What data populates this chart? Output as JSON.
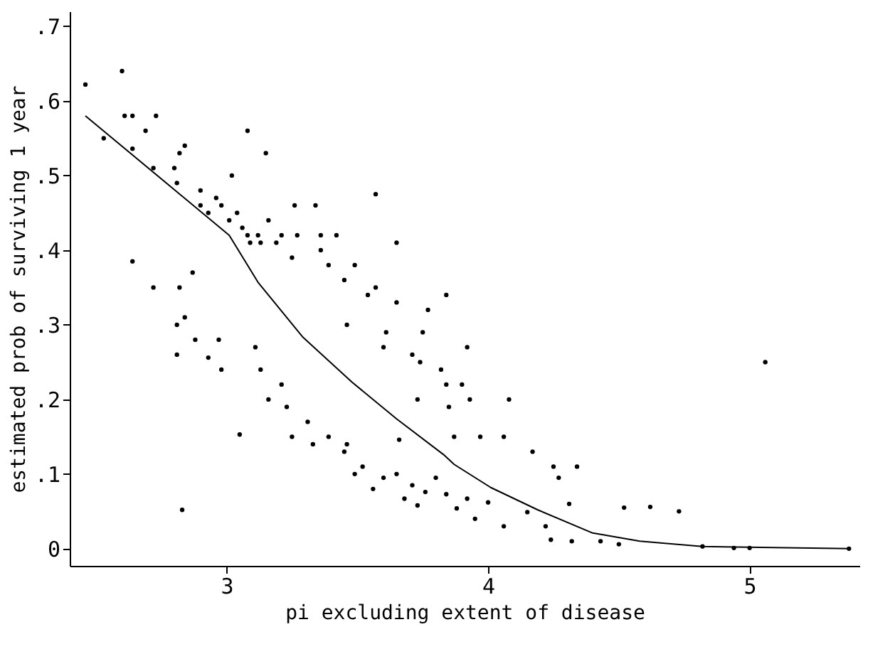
{
  "chart_data": {
    "type": "scatter",
    "xlabel": "pi excluding extent of disease",
    "ylabel": "estimated prob of surviving 1 year",
    "xlim": [
      2.4,
      5.42
    ],
    "ylim": [
      -0.023,
      0.72
    ],
    "xticks": [
      3,
      4,
      5
    ],
    "yticks": [
      0,
      {
        "value": 0.1,
        "label": ".1"
      },
      {
        "value": 0.2,
        "label": ".2"
      },
      {
        "value": 0.3,
        "label": ".3"
      },
      {
        "value": 0.4,
        "label": ".4"
      },
      {
        "value": 0.5,
        "label": ".5"
      },
      {
        "value": 0.6,
        "label": ".6"
      },
      {
        "value": 0.7,
        "label": ".7"
      }
    ],
    "grid": false,
    "legend": false,
    "series": [
      {
        "color": "#000000",
        "marker": "circle",
        "x": [
          2.46,
          2.53,
          2.6,
          2.61,
          2.64,
          2.64,
          2.69,
          2.72,
          2.73,
          2.8,
          2.81,
          2.82,
          2.84,
          3.08,
          3.15,
          3.02,
          3.57,
          2.9,
          2.9,
          2.93,
          2.96,
          2.98,
          3.01,
          3.04,
          3.06,
          3.08,
          3.09,
          3.12,
          3.13,
          3.16,
          3.19,
          3.21,
          3.26,
          3.27,
          3.34,
          3.36,
          3.36,
          3.25,
          3.39,
          3.42,
          3.45,
          3.49,
          3.54,
          3.46,
          3.57,
          3.65,
          3.61,
          3.71,
          3.6,
          3.75,
          3.74,
          3.82,
          3.73,
          3.84,
          3.9,
          3.93,
          3.97,
          4.06,
          3.65,
          3.84,
          3.77,
          3.85,
          3.92,
          4.08,
          4.17,
          4.27,
          4.25,
          4.34,
          4.31,
          4.52,
          4.73,
          4.62,
          5.06,
          2.81,
          2.81,
          2.84,
          2.88,
          2.93,
          2.97,
          2.98,
          3.05,
          3.11,
          3.13,
          3.16,
          3.21,
          3.23,
          3.25,
          3.31,
          3.33,
          3.39,
          3.45,
          3.49,
          3.52,
          3.56,
          3.6,
          3.65,
          3.68,
          3.71,
          3.73,
          3.76,
          3.8,
          3.84,
          3.88,
          3.92,
          3.95,
          4.0,
          4.06,
          4.15,
          4.22,
          4.24,
          4.32,
          4.43,
          4.5,
          4.82,
          4.94,
          5.0,
          5.38,
          3.46,
          3.87,
          3.66,
          2.83,
          2.64,
          2.72,
          2.82,
          2.87
        ],
        "values": [
          0.622,
          0.55,
          0.64,
          0.58,
          0.58,
          0.536,
          0.56,
          0.51,
          0.58,
          0.51,
          0.49,
          0.53,
          0.54,
          0.56,
          0.53,
          0.5,
          0.475,
          0.48,
          0.46,
          0.45,
          0.47,
          0.46,
          0.44,
          0.45,
          0.43,
          0.42,
          0.41,
          0.42,
          0.41,
          0.44,
          0.41,
          0.42,
          0.46,
          0.42,
          0.46,
          0.42,
          0.4,
          0.39,
          0.38,
          0.42,
          0.36,
          0.38,
          0.34,
          0.3,
          0.35,
          0.41,
          0.29,
          0.26,
          0.27,
          0.29,
          0.25,
          0.24,
          0.2,
          0.22,
          0.22,
          0.2,
          0.15,
          0.15,
          0.33,
          0.34,
          0.32,
          0.19,
          0.27,
          0.2,
          0.13,
          0.095,
          0.11,
          0.11,
          0.06,
          0.055,
          0.05,
          0.056,
          0.25,
          0.26,
          0.3,
          0.31,
          0.28,
          0.256,
          0.28,
          0.24,
          0.153,
          0.27,
          0.24,
          0.2,
          0.22,
          0.19,
          0.15,
          0.17,
          0.14,
          0.15,
          0.13,
          0.1,
          0.11,
          0.08,
          0.095,
          0.1,
          0.067,
          0.085,
          0.058,
          0.076,
          0.095,
          0.073,
          0.054,
          0.067,
          0.04,
          0.062,
          0.03,
          0.049,
          0.03,
          0.012,
          0.01,
          0.01,
          0.006,
          0.003,
          0.001,
          0.001,
          0,
          0.14,
          0.15,
          0.146,
          0.052,
          0.385,
          0.35,
          0.35,
          0.37
        ]
      },
      {
        "type": "line",
        "color": "#000000",
        "marker": "none",
        "line_style": "solid",
        "x": [
          2.46,
          3.01,
          3.12,
          3.29,
          3.48,
          3.65,
          3.83,
          3.87,
          4.01,
          4.19,
          4.4,
          4.58,
          4.82,
          5.38
        ],
        "values": [
          0.58,
          0.42,
          0.357,
          0.284,
          0.223,
          0.174,
          0.126,
          0.113,
          0.082,
          0.052,
          0.021,
          0.01,
          0.003,
          0
        ]
      }
    ]
  }
}
